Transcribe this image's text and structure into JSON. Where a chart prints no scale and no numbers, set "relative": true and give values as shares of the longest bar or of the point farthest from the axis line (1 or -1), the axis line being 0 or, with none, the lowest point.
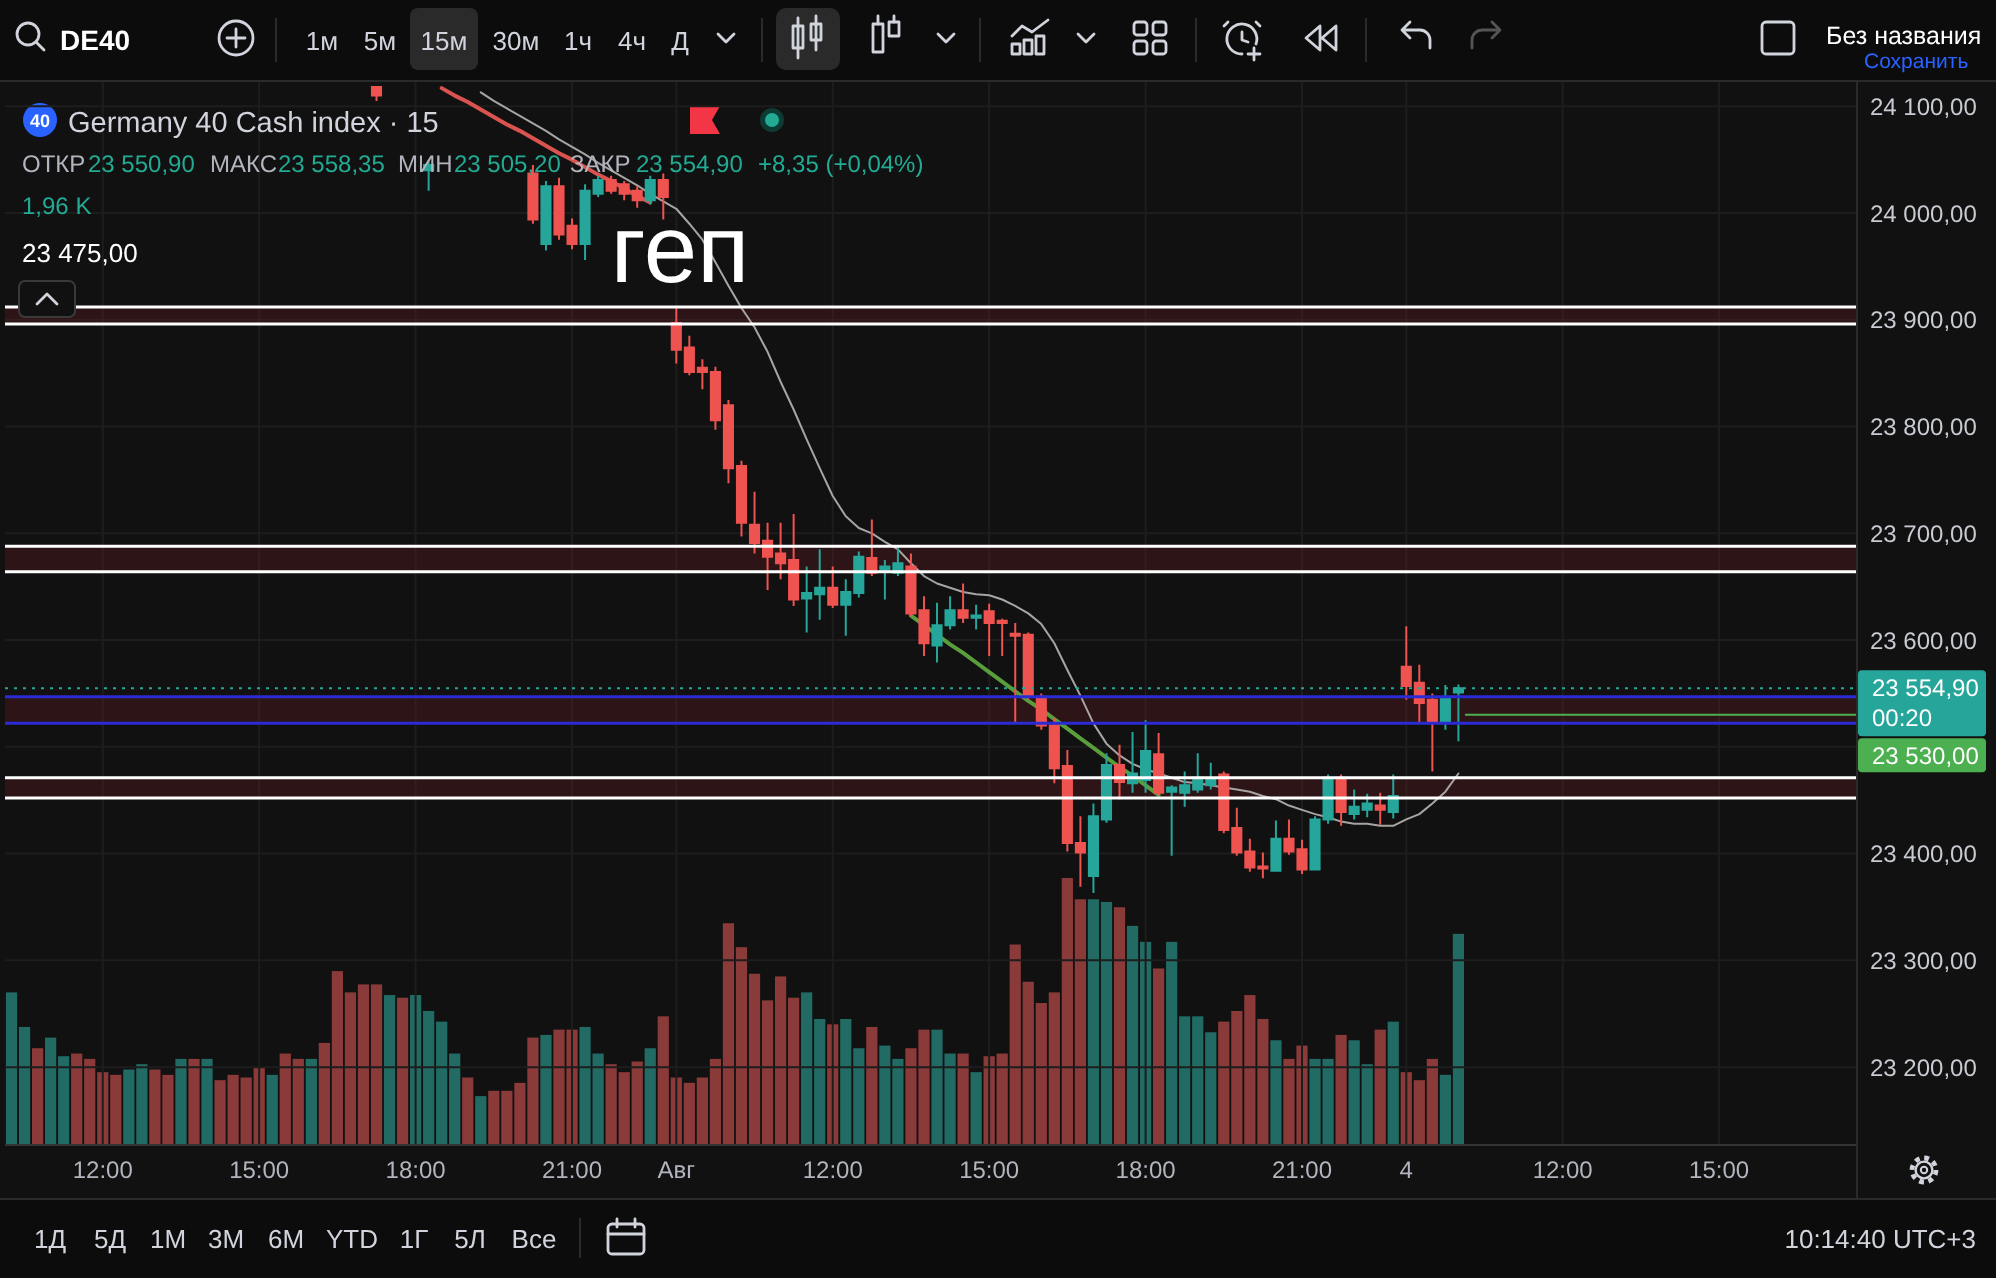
{
  "chart_data": [
    {
      "type": "candlestick",
      "title": "Germany 40 Cash index · 15",
      "categories": [
        null,
        null,
        null,
        null,
        null,
        null,
        null,
        "12:00",
        null,
        null,
        null,
        null,
        null,
        null,
        null,
        null,
        null,
        null,
        null,
        "15:00",
        null,
        null,
        null,
        null,
        null,
        null,
        null,
        null,
        null,
        null,
        null,
        "18:00",
        null,
        null,
        null,
        null,
        null,
        null,
        null,
        null,
        null,
        null,
        null,
        "21:00",
        null,
        null,
        null,
        null,
        null,
        null,
        null,
        "Авг",
        null,
        null,
        null,
        null,
        null,
        null,
        null,
        null,
        null,
        null,
        null,
        "12:00",
        null,
        null,
        null,
        null,
        null,
        null,
        null,
        null,
        null,
        null,
        null,
        "15:00",
        null,
        null,
        null,
        null,
        null,
        null,
        null,
        null,
        null,
        null,
        null,
        "18:00",
        null,
        null,
        null,
        null,
        null,
        null,
        null,
        null,
        null,
        null,
        null,
        "21:00",
        null,
        null,
        null,
        null,
        null,
        null,
        null,
        "4",
        null,
        null,
        null,
        null,
        null,
        null,
        null,
        null,
        null,
        null,
        null,
        "12:00",
        null,
        null,
        null,
        null,
        null,
        null,
        null,
        null,
        null,
        null,
        null,
        "15:00",
        null,
        null,
        null,
        null,
        null,
        null,
        null,
        null,
        null,
        null
      ],
      "ohlc": [
        null,
        null,
        null,
        null,
        null,
        null,
        null,
        null,
        null,
        null,
        null,
        null,
        null,
        null,
        null,
        null,
        null,
        null,
        null,
        null,
        null,
        null,
        null,
        null,
        null,
        null,
        null,
        null,
        [
          24118,
          24119,
          24105,
          24110
        ],
        null,
        null,
        null,
        [
          24040,
          24050,
          24021,
          24045
        ],
        null,
        null,
        null,
        null,
        null,
        null,
        null,
        [
          24037,
          24045,
          23990,
          23994
        ],
        [
          23971,
          24030,
          23965,
          24025
        ],
        [
          24025,
          24033,
          23975,
          23980
        ],
        [
          23988,
          23995,
          23966,
          23971
        ],
        [
          23971,
          24027,
          23956,
          24021
        ],
        [
          24018,
          24035,
          24015,
          24031
        ],
        [
          24031,
          24035,
          24018,
          24021
        ],
        [
          24027,
          24030,
          24012,
          24018
        ],
        [
          24021,
          24025,
          24005,
          24012
        ],
        [
          24012,
          24035,
          24008,
          24031
        ],
        [
          24031,
          24037,
          23994,
          24015
        ],
        [
          23897,
          23913,
          23859,
          23872
        ],
        [
          23874,
          23885,
          23848,
          23851
        ],
        [
          23855,
          23863,
          23835,
          23851
        ],
        [
          23851,
          23856,
          23797,
          23806
        ],
        [
          23820,
          23825,
          23747,
          23761
        ],
        [
          23763,
          23768,
          23697,
          23710
        ],
        [
          23708,
          23739,
          23681,
          23691
        ],
        [
          23693,
          23710,
          23647,
          23678
        ],
        [
          23681,
          23710,
          23657,
          23672
        ],
        [
          23675,
          23718,
          23632,
          23638
        ],
        [
          23639,
          23669,
          23607,
          23644
        ],
        [
          23643,
          23685,
          23619,
          23649
        ],
        [
          23649,
          23669,
          23630,
          23633
        ],
        [
          23633,
          23657,
          23604,
          23645
        ],
        [
          23644,
          23683,
          23640,
          23678
        ],
        [
          23677,
          23713,
          23660,
          23663
        ],
        [
          23666,
          23675,
          23638,
          23669
        ],
        [
          23663,
          23689,
          23660,
          23672
        ],
        [
          23669,
          23681,
          23622,
          23625
        ],
        [
          23628,
          23641,
          23585,
          23597
        ],
        [
          23595,
          23635,
          23579,
          23614
        ],
        [
          23614,
          23641,
          23610,
          23628
        ],
        [
          23628,
          23653,
          23616,
          23621
        ],
        [
          23621,
          23633,
          23610,
          23623
        ],
        [
          23627,
          23634,
          23585,
          23616
        ],
        [
          23618,
          23620,
          23585,
          23616
        ],
        [
          23606,
          23616,
          23522,
          23604
        ],
        [
          23605,
          23607,
          23544,
          23547
        ],
        [
          23547,
          23550,
          23516,
          23520
        ],
        [
          23520,
          23527,
          23466,
          23480
        ],
        [
          23482,
          23497,
          23402,
          23410
        ],
        [
          23410,
          23435,
          23369,
          23401
        ],
        [
          23379,
          23447,
          23363,
          23435
        ],
        [
          23432,
          23494,
          23429,
          23483
        ],
        [
          23483,
          23502,
          23451,
          23467
        ],
        [
          23466,
          23514,
          23457,
          23475
        ],
        [
          23469,
          23525,
          23457,
          23496
        ],
        [
          23493,
          23513,
          23455,
          23457
        ],
        [
          23458,
          23464,
          23398,
          23462
        ],
        [
          23457,
          23477,
          23444,
          23464
        ],
        [
          23460,
          23494,
          23457,
          23471
        ],
        [
          23464,
          23485,
          23460,
          23469
        ],
        [
          23474,
          23477,
          23419,
          23422
        ],
        [
          23424,
          23443,
          23398,
          23401
        ],
        [
          23402,
          23414,
          23383,
          23387
        ],
        [
          23388,
          23401,
          23377,
          23386
        ],
        [
          23384,
          23431,
          23383,
          23414
        ],
        [
          23414,
          23432,
          23399,
          23402
        ],
        [
          23404,
          23413,
          23381,
          23385
        ],
        [
          23385,
          23435,
          23385,
          23432
        ],
        [
          23432,
          23474,
          23428,
          23471
        ],
        [
          23471,
          23474,
          23426,
          23439
        ],
        [
          23437,
          23460,
          23432,
          23444
        ],
        [
          23441,
          23456,
          23434,
          23447
        ],
        [
          23445,
          23457,
          23427,
          23441
        ],
        [
          23439,
          23474,
          23433,
          23454
        ],
        [
          23575,
          23613,
          23544,
          23557
        ],
        [
          23560,
          23577,
          23522,
          23541
        ],
        [
          23544,
          23550,
          23477,
          23524
        ],
        [
          23524,
          23558,
          23516,
          23545
        ],
        [
          23550.9,
          23558.35,
          23505.2,
          23554.9
        ],
        null,
        null,
        null,
        null,
        null,
        null,
        null,
        null,
        null,
        null,
        null,
        null,
        null,
        null,
        null,
        null,
        null,
        null,
        null,
        null,
        null,
        null,
        null,
        null,
        null,
        null,
        null,
        null,
        null,
        null
      ],
      "colors": [
        null,
        null,
        null,
        null,
        null,
        null,
        null,
        null,
        null,
        null,
        null,
        null,
        null,
        null,
        null,
        null,
        null,
        null,
        null,
        null,
        null,
        null,
        null,
        null,
        null,
        null,
        null,
        null,
        "#ef5350",
        null,
        null,
        null,
        "#26a69a",
        null,
        null,
        null,
        null,
        null,
        null,
        null,
        "#ef5350",
        "#26a69a",
        "#ef5350",
        "#ef5350",
        "#26a69a",
        "#26a69a",
        "#ef5350",
        "#ef5350",
        "#ef5350",
        "#26a69a",
        "#ef5350",
        "#ef5350",
        "#ef5350",
        "#ef5350",
        "#ef5350",
        "#ef5350",
        "#ef5350",
        "#ef5350",
        "#ef5350",
        "#ef5350",
        "#ef5350",
        "#26a69a",
        "#26a69a",
        "#ef5350",
        "#26a69a",
        "#26a69a",
        "#ef5350",
        "#26a69a",
        "#26a69a",
        "#ef5350",
        "#ef5350",
        "#26a69a",
        "#26a69a",
        "#ef5350",
        "#26a69a",
        "#ef5350",
        "#ef5350",
        "#ef5350",
        "#ef5350",
        "#ef5350",
        "#ef5350",
        "#ef5350",
        "#ef5350",
        "#26a69a",
        "#26a69a",
        "#ef5350",
        "#26a69a",
        "#26a69a",
        "#ef5350",
        "#26a69a",
        "#26a69a",
        "#26a69a",
        "#26a69a",
        "#ef5350",
        "#ef5350",
        "#ef5350",
        "#ef5350",
        "#26a69a",
        "#ef5350",
        "#ef5350",
        "#26a69a",
        "#26a69a",
        "#ef5350",
        "#26a69a",
        "#26a69a",
        "#ef5350",
        "#26a69a",
        "#ef5350",
        "#ef5350",
        "#ef5350",
        "#26a69a",
        "#26a69a",
        null,
        null,
        null,
        null,
        null,
        null,
        null,
        null,
        null,
        null,
        null,
        null,
        null,
        null,
        null,
        null,
        null,
        null,
        null,
        null,
        null,
        null,
        null,
        null,
        null,
        null,
        null,
        null,
        null,
        null
      ],
      "series": [
        {
          "type": "line",
          "color": "#a9a4a4",
          "values": [
            null,
            null,
            null,
            null,
            null,
            null,
            null,
            null,
            null,
            null,
            null,
            null,
            null,
            null,
            null,
            null,
            null,
            null,
            null,
            null,
            null,
            null,
            null,
            null,
            null,
            null,
            null,
            null,
            null,
            null,
            null,
            null,
            null,
            null,
            null,
            null,
            24113,
            24105,
            24098,
            24091,
            24084,
            24077,
            24069,
            24062,
            24055,
            24047,
            24040,
            24033,
            24026,
            24018,
            24011,
            24004,
            23990,
            23975,
            23954,
            23932,
            23911,
            23893,
            23870,
            23842,
            23816,
            23788,
            23761,
            23735,
            23716,
            23705,
            23700,
            23692,
            23685,
            23672,
            23660,
            23653,
            23649,
            23645,
            23643,
            23642,
            23638,
            23632,
            23625,
            23615,
            23597,
            23572,
            23548,
            23522,
            23503,
            23492,
            23484,
            23479,
            23475,
            23471,
            23467,
            23466,
            23464,
            23462,
            23460,
            23458,
            23454,
            23451,
            23445,
            23441,
            23437,
            23434,
            23430,
            23428,
            23428,
            23426,
            23426,
            23432,
            23437,
            23447,
            23458,
            23475,
            null,
            null,
            null,
            null,
            null,
            null,
            null,
            null,
            null,
            null,
            null,
            null,
            null,
            null,
            null,
            null,
            null,
            null,
            null,
            null,
            null,
            null,
            null,
            null,
            null,
            null,
            null,
            null,
            null,
            null
          ]
        },
        {
          "type": "line",
          "color": "#d9534f",
          "values": [
            null,
            null,
            null,
            null,
            null,
            null,
            null,
            null,
            null,
            null,
            null,
            null,
            null,
            null,
            null,
            null,
            null,
            null,
            null,
            null,
            null,
            null,
            null,
            null,
            null,
            null,
            null,
            null,
            null,
            null,
            null,
            null,
            null,
            24117,
            24110,
            24104,
            24097,
            24090,
            24083,
            24077,
            24070,
            24063,
            24056,
            24050,
            24043,
            24036,
            24030,
            24023,
            24016,
            24010,
            null,
            null,
            null,
            null,
            null,
            null,
            null,
            null,
            null,
            null,
            null,
            null,
            null,
            null,
            null,
            null,
            null,
            null,
            null,
            null,
            null,
            null,
            null,
            null,
            null,
            null,
            null,
            null,
            null,
            null,
            null,
            null,
            null,
            null,
            null,
            null,
            null,
            null,
            null,
            null,
            null,
            null,
            null,
            null,
            null,
            null,
            null,
            null,
            null,
            null,
            null,
            null,
            null,
            null,
            null,
            null,
            null,
            null,
            null,
            null,
            null,
            null,
            null,
            null,
            null,
            null,
            null,
            null,
            null,
            null,
            null,
            null,
            null,
            null,
            null,
            null,
            null,
            null,
            null,
            null,
            null,
            null,
            null,
            null,
            null,
            null,
            null,
            null,
            null,
            null,
            null,
            null
          ]
        },
        {
          "type": "line",
          "color": "#5a9e3c",
          "values": [
            null,
            null,
            null,
            null,
            null,
            null,
            null,
            null,
            null,
            null,
            null,
            null,
            null,
            null,
            null,
            null,
            null,
            null,
            null,
            null,
            null,
            null,
            null,
            null,
            null,
            null,
            null,
            null,
            null,
            null,
            null,
            null,
            null,
            null,
            null,
            null,
            null,
            null,
            null,
            null,
            null,
            null,
            null,
            null,
            null,
            null,
            null,
            null,
            null,
            null,
            null,
            null,
            null,
            null,
            null,
            null,
            null,
            null,
            null,
            null,
            null,
            null,
            null,
            null,
            null,
            null,
            null,
            null,
            null,
            23623,
            23614,
            23605,
            23596,
            23588,
            23579,
            23570,
            23561,
            23552,
            23543,
            23535,
            23526,
            23517,
            23508,
            23499,
            23490,
            23481,
            23473,
            23464,
            23455,
            null,
            null,
            null,
            null,
            null,
            null,
            null,
            null,
            null,
            null,
            null,
            null,
            null,
            null,
            null,
            null,
            null,
            null,
            null,
            null,
            null,
            null,
            null,
            null,
            null,
            null,
            null,
            null,
            null,
            null,
            null,
            null,
            null,
            null,
            null,
            null,
            null,
            null,
            null,
            null,
            null,
            null,
            null,
            null,
            null,
            null,
            null,
            null,
            null,
            null,
            null,
            null,
            null
          ]
        }
      ],
      "ylim": [
        23128,
        24119
      ],
      "yticks": [
        {
          "value": 24100,
          "label": "24 100,00"
        },
        {
          "value": 24000,
          "label": "24 000,00"
        },
        {
          "value": 23900,
          "label": "23 900,00"
        },
        {
          "value": 23800,
          "label": "23 800,00"
        },
        {
          "value": 23700,
          "label": "23 700,00"
        },
        {
          "value": 23600,
          "label": "23 600,00"
        },
        {
          "value": 23500,
          "label": null
        },
        {
          "value": 23400,
          "label": "23 400,00"
        },
        {
          "value": 23300,
          "label": "23 300,00"
        },
        {
          "value": 23200,
          "label": "23 200,00"
        }
      ],
      "grid": true,
      "bands": [
        {
          "axis": "y",
          "from": 23896,
          "to": 23912,
          "color": "#781c28"
        },
        {
          "axis": "y",
          "from": 23664,
          "to": 23688,
          "color": "#781c28"
        },
        {
          "axis": "y",
          "from": 23452,
          "to": 23471,
          "color": "#781c28"
        },
        {
          "axis": "y",
          "from": 23522,
          "to": 23547,
          "color": "#781c28"
        }
      ],
      "ref_lines": [
        {
          "axis": "y",
          "value": 23554.9,
          "label": "23 554,90",
          "color": "#26a69a",
          "line_style": "dotted"
        },
        {
          "axis": "y",
          "value": 23530,
          "label": "23 530,00",
          "color": "#4caf50",
          "line_style": "solid"
        },
        {
          "axis": "y",
          "value": 23912,
          "color": "#ffffff",
          "line_style": "solid"
        },
        {
          "axis": "y",
          "value": 23896,
          "color": "#ffffff",
          "line_style": "solid"
        },
        {
          "axis": "y",
          "value": 23688,
          "color": "#ffffff",
          "line_style": "solid"
        },
        {
          "axis": "y",
          "value": 23664,
          "color": "#ffffff",
          "line_style": "solid"
        },
        {
          "axis": "y",
          "value": 23471,
          "color": "#ffffff",
          "line_style": "solid"
        },
        {
          "axis": "y",
          "value": 23452,
          "color": "#ffffff",
          "line_style": "solid"
        },
        {
          "axis": "y",
          "value": 23547,
          "color": "#2b2bd6",
          "line_style": "solid"
        },
        {
          "axis": "y",
          "value": 23522,
          "color": "#2b2bd6",
          "line_style": "solid"
        }
      ],
      "annotations": [
        "DE40",
        "1м",
        "5м",
        "15м",
        "30м",
        "1ч",
        "4ч",
        "Д",
        "Без названия",
        "Сохранить",
        "40",
        "ОТКР",
        "23 550,90",
        "МАКС",
        "23 558,35",
        "МИН",
        "23 505,20",
        "ЗАКР",
        "23 554,90",
        "+8,35 (+0,04%)",
        "1,96 K",
        "23 475,00",
        "геп",
        "00:20",
        "1Д",
        "5Д",
        "1М",
        "3М",
        "6М",
        "YTD",
        "1Г",
        "5Л",
        "Все",
        "10:14:40 UTC+3"
      ]
    },
    {
      "type": "bar",
      "relative": true,
      "categories": [
        null,
        null,
        null,
        null,
        null,
        null,
        null,
        null,
        null,
        null,
        null,
        null,
        null,
        null,
        null,
        null,
        null,
        null,
        null,
        null,
        null,
        null,
        null,
        null,
        null,
        null,
        null,
        null,
        null,
        null,
        null,
        null,
        null,
        null,
        null,
        null,
        null,
        null,
        null,
        null,
        null,
        null,
        null,
        null,
        null,
        null,
        null,
        null,
        null,
        null,
        null,
        null,
        null,
        null,
        null,
        null,
        null,
        null,
        null,
        null,
        null,
        null,
        null,
        null,
        null,
        null,
        null,
        null,
        null,
        null,
        null,
        null,
        null,
        null,
        null,
        null,
        null,
        null,
        null,
        null,
        null,
        null,
        null,
        null,
        null,
        null,
        null,
        null,
        null,
        null,
        null,
        null,
        null,
        null,
        null,
        null,
        null,
        null,
        null,
        null,
        null,
        null,
        null,
        null,
        null,
        null,
        null,
        null,
        null,
        null,
        null,
        null,
        null,
        null,
        null,
        null,
        null,
        null,
        null,
        null,
        null,
        null,
        null,
        null,
        null,
        null,
        null,
        null,
        null,
        null,
        null,
        null,
        null,
        null,
        null,
        null,
        null,
        null,
        null,
        null,
        null,
        null
      ],
      "values": [
        0.57,
        0.44,
        0.36,
        0.4,
        0.33,
        0.34,
        0.32,
        0.27,
        0.26,
        0.28,
        0.3,
        0.28,
        0.26,
        0.32,
        0.32,
        0.32,
        0.24,
        0.26,
        0.25,
        0.29,
        0.26,
        0.34,
        0.32,
        0.32,
        0.38,
        0.65,
        0.57,
        0.6,
        0.6,
        0.56,
        0.55,
        0.56,
        0.5,
        0.46,
        0.34,
        0.25,
        0.18,
        0.2,
        0.2,
        0.23,
        0.4,
        0.41,
        0.43,
        0.43,
        0.44,
        0.34,
        0.3,
        0.27,
        0.31,
        0.36,
        0.48,
        0.25,
        0.23,
        0.25,
        0.32,
        0.83,
        0.74,
        0.64,
        0.54,
        0.63,
        0.55,
        0.57,
        0.47,
        0.45,
        0.47,
        0.36,
        0.44,
        0.37,
        0.32,
        0.36,
        0.43,
        0.43,
        0.34,
        0.34,
        0.27,
        0.33,
        0.34,
        0.75,
        0.61,
        0.53,
        0.57,
        1,
        0.92,
        0.92,
        0.91,
        0.89,
        0.82,
        0.76,
        0.66,
        0.76,
        0.48,
        0.48,
        0.42,
        0.46,
        0.5,
        0.56,
        0.47,
        0.39,
        0.32,
        0.37,
        0.32,
        0.32,
        0.41,
        0.39,
        0.3,
        0.43,
        0.46,
        0.27,
        0.24,
        0.32,
        0.26,
        0.79,
        null,
        null,
        null,
        null,
        null,
        null,
        null,
        null,
        null,
        null,
        null,
        null,
        null,
        null,
        null,
        null,
        null,
        null,
        null,
        null,
        null,
        null,
        null,
        null,
        null,
        null,
        null,
        null,
        null,
        null
      ],
      "colors": [
        "#226b64",
        "#226b64",
        "#8b3a3a",
        "#226b64",
        "#226b64",
        "#8b3a3a",
        "#8b3a3a",
        "#8b3a3a",
        "#8b3a3a",
        "#226b64",
        "#226b64",
        "#8b3a3a",
        "#8b3a3a",
        "#226b64",
        "#8b3a3a",
        "#226b64",
        "#8b3a3a",
        "#8b3a3a",
        "#8b3a3a",
        "#8b3a3a",
        "#226b64",
        "#8b3a3a",
        "#8b3a3a",
        "#226b64",
        "#8b3a3a",
        "#8b3a3a",
        "#8b3a3a",
        "#8b3a3a",
        "#8b3a3a",
        "#226b64",
        "#8b3a3a",
        "#226b64",
        "#226b64",
        "#226b64",
        "#226b64",
        "#8b3a3a",
        "#226b64",
        "#8b3a3a",
        "#8b3a3a",
        "#8b3a3a",
        "#8b3a3a",
        "#226b64",
        "#8b3a3a",
        "#8b3a3a",
        "#226b64",
        "#226b64",
        "#8b3a3a",
        "#8b3a3a",
        "#8b3a3a",
        "#226b64",
        "#8b3a3a",
        "#8b3a3a",
        "#8b3a3a",
        "#8b3a3a",
        "#8b3a3a",
        "#8b3a3a",
        "#8b3a3a",
        "#8b3a3a",
        "#8b3a3a",
        "#8b3a3a",
        "#8b3a3a",
        "#226b64",
        "#226b64",
        "#8b3a3a",
        "#226b64",
        "#226b64",
        "#8b3a3a",
        "#226b64",
        "#226b64",
        "#8b3a3a",
        "#8b3a3a",
        "#226b64",
        "#226b64",
        "#8b3a3a",
        "#226b64",
        "#8b3a3a",
        "#8b3a3a",
        "#8b3a3a",
        "#8b3a3a",
        "#8b3a3a",
        "#8b3a3a",
        "#8b3a3a",
        "#8b3a3a",
        "#226b64",
        "#226b64",
        "#8b3a3a",
        "#226b64",
        "#226b64",
        "#8b3a3a",
        "#226b64",
        "#226b64",
        "#226b64",
        "#226b64",
        "#8b3a3a",
        "#8b3a3a",
        "#8b3a3a",
        "#8b3a3a",
        "#226b64",
        "#8b3a3a",
        "#8b3a3a",
        "#226b64",
        "#226b64",
        "#8b3a3a",
        "#226b64",
        "#226b64",
        "#8b3a3a",
        "#226b64",
        "#8b3a3a",
        "#8b3a3a",
        "#8b3a3a",
        "#226b64",
        "#226b64",
        null,
        null,
        null,
        null,
        null,
        null,
        null,
        null,
        null,
        null,
        null,
        null,
        null,
        null,
        null,
        null,
        null,
        null,
        null,
        null,
        null,
        null,
        null,
        null,
        null,
        null,
        null,
        null,
        null,
        null
      ]
    }
  ]
}
